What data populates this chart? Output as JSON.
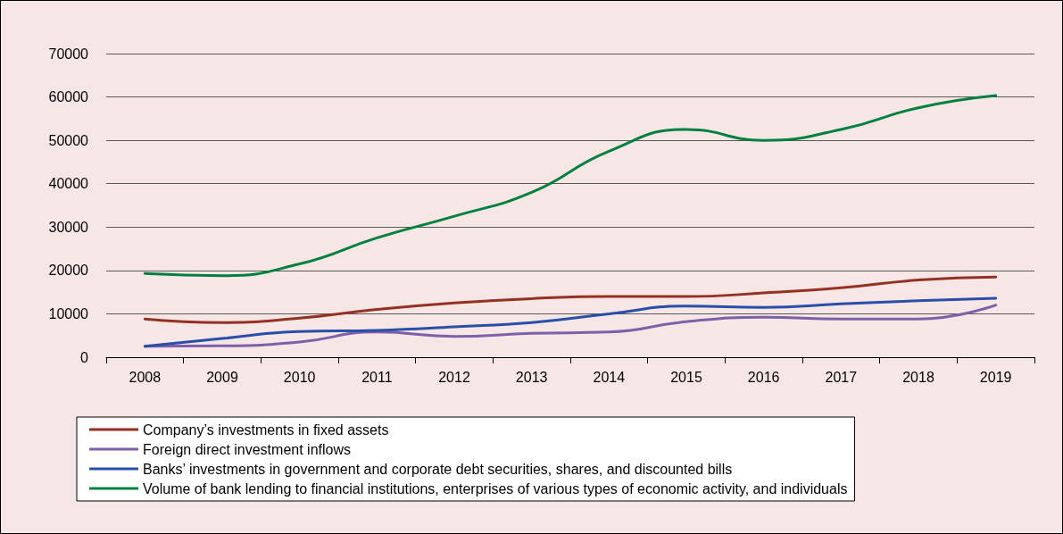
{
  "chart_data": {
    "type": "line",
    "categories": [
      "2008",
      "2009",
      "2010",
      "2011",
      "2012",
      "2013",
      "2014",
      "2015",
      "2016",
      "2017",
      "2018",
      "2019"
    ],
    "series": [
      {
        "name": "Company’s investments in fixed assets",
        "color": "#953123",
        "values": [
          8800,
          8000,
          9000,
          11000,
          12500,
          13500,
          14000,
          14000,
          14800,
          16000,
          17800,
          18500
        ]
      },
      {
        "name": "Foreign direct investment inflows",
        "color": "#7f5fa9",
        "values": [
          2500,
          2600,
          3500,
          5800,
          4800,
          5500,
          5800,
          8200,
          9200,
          8800,
          8800,
          12000
        ]
      },
      {
        "name": "Banks’ investments in government and corporate debt securities, shares, and discounted bills",
        "color": "#2a4fa8",
        "values": [
          2500,
          4300,
          5900,
          6200,
          7000,
          8000,
          10000,
          11800,
          11500,
          12300,
          13000,
          13600
        ]
      },
      {
        "name": "Volume of bank lending to financial institutions, enterprises of various types of economic activity, and individuals",
        "color": "#00803f",
        "values": [
          19300,
          18800,
          21500,
          27500,
          32500,
          38000,
          47500,
          52500,
          50000,
          52500,
          57500,
          60300
        ]
      }
    ],
    "ylim": [
      0,
      70000
    ],
    "yticks": [
      0,
      10000,
      20000,
      30000,
      40000,
      50000,
      60000,
      70000
    ],
    "grid": "y",
    "legend": "bottom",
    "marker": "none",
    "line_style": "solid"
  }
}
